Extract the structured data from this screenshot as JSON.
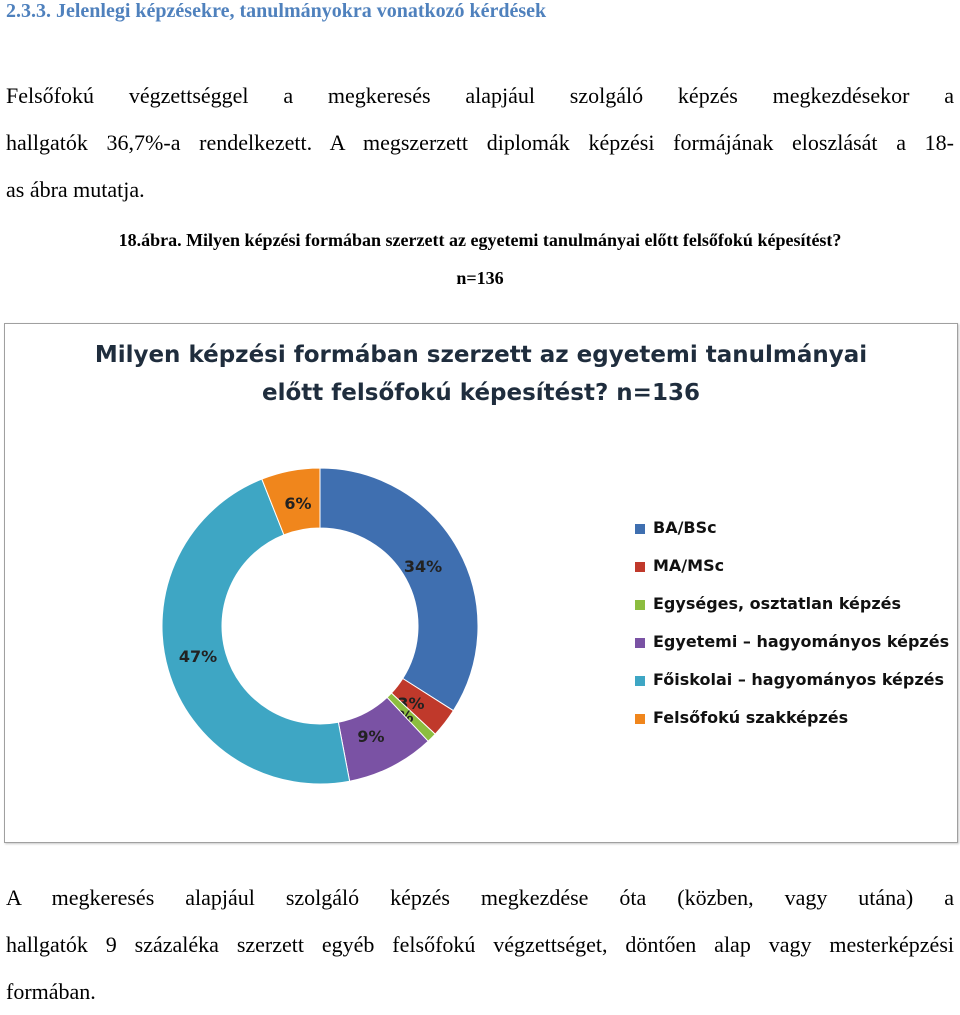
{
  "heading": "2.3.3. Jelenlegi képzésekre, tanulmányokra vonatkozó kérdések",
  "intro_lines": [
    "Felsőfokú végzettséggel a megkeresés alapjául szolgáló képzés megkezdésekor a",
    "hallgatók 36,7%-a rendelkezett. A megszerzett diplomák képzési formájának eloszlását a 18-",
    "as ábra mutatja."
  ],
  "figure_caption": "18.ábra. Milyen képzési formában szerzett az egyetemi tanulmányai előtt felsőfokú képesítést?",
  "figure_n": "n=136",
  "chart_data": {
    "type": "pie",
    "donut": true,
    "title_lines": [
      "Milyen képzési formában szerzett az egyetemi tanulmányai",
      "előtt felsőfokú képesítést? n=136"
    ],
    "slices": [
      {
        "name": "BA/BSc",
        "value": 34,
        "label": "34%",
        "color": "#3f6fb0"
      },
      {
        "name": "MA/MSc",
        "value": 3,
        "label": "3%",
        "color": "#c0392b"
      },
      {
        "name": "Egységes, osztatlan képzés",
        "value": 1,
        "label": "1%",
        "color": "#8cbd3f"
      },
      {
        "name": "Egyetemi – hagyományos képzés",
        "value": 9,
        "label": "9%",
        "color": "#7a52a4"
      },
      {
        "name": "Főiskolai – hagyományos képzés",
        "value": 47,
        "label": "47%",
        "color": "#3ea6c4"
      },
      {
        "name": "Felsőfokú szakképzés",
        "value": 6,
        "label": "6%",
        "color": "#f0861c"
      }
    ],
    "legend_position": "right"
  },
  "closing_lines": [
    "A megkeresés alapjául szolgáló képzés megkezdése óta (közben, vagy utána) a",
    "hallgatók 9 százaléka szerzett egyéb felsőfokú végzettséget, döntően alap vagy mesterképzési",
    "formában."
  ]
}
